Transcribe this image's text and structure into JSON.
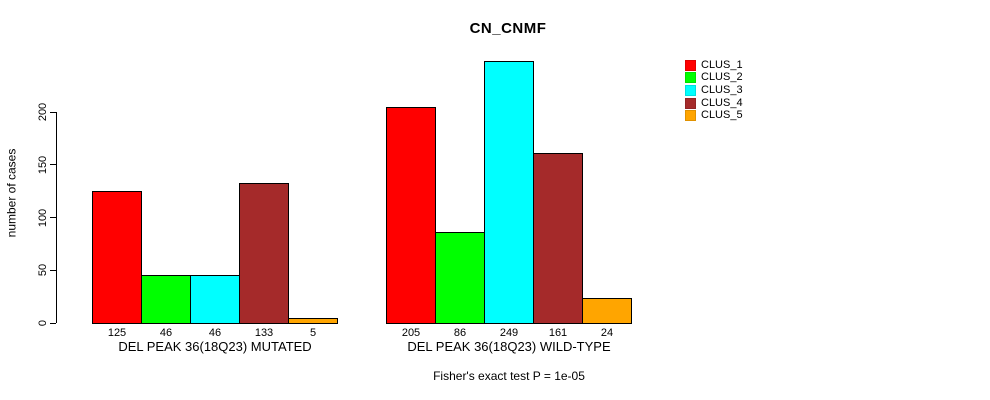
{
  "chart_data": {
    "type": "bar",
    "title": "CN_CNMF",
    "ylabel": "number of cases",
    "xlabel": "",
    "categories": [
      "DEL PEAK 36(18Q23) MUTATED",
      "DEL PEAK 36(18Q23) WILD-TYPE"
    ],
    "series": [
      {
        "name": "CLUS_1",
        "color": "#FF0000",
        "values": [
          125,
          205
        ]
      },
      {
        "name": "CLUS_2",
        "color": "#00FF00",
        "values": [
          46,
          86
        ]
      },
      {
        "name": "CLUS_3",
        "color": "#00FFFF",
        "values": [
          46,
          249
        ]
      },
      {
        "name": "CLUS_4",
        "color": "#A52A2A",
        "values": [
          133,
          161
        ]
      },
      {
        "name": "CLUS_5",
        "color": "#FFA500",
        "values": [
          5,
          24
        ]
      }
    ],
    "bar_value_labels": true,
    "yticks": [
      0,
      50,
      100,
      150,
      200
    ],
    "ylim": [
      0,
      249
    ],
    "grid": false,
    "legend_position": "right",
    "annotation": "Fisher's exact test P = 1e-05"
  }
}
